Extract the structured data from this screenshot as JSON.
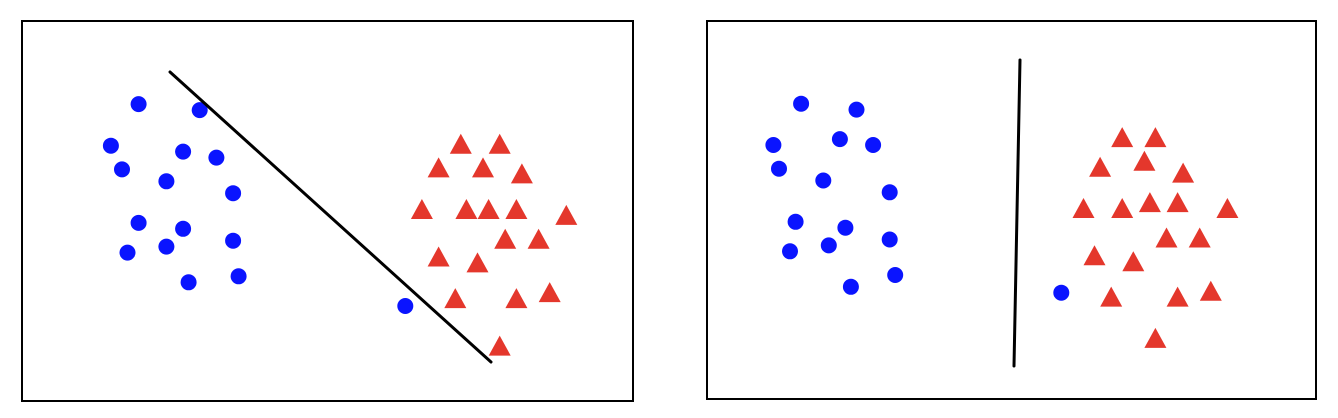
{
  "colors": {
    "background": "#ffffff",
    "frame": "#000000",
    "boundary": "#000000",
    "class_a": "#0a14ff",
    "class_b": "#e4372c"
  },
  "chart_data": [
    {
      "type": "scatter",
      "panel": "left",
      "boundary": {
        "orientation": "diagonal"
      },
      "series": [
        {
          "marker": "circle",
          "color": "#0a14ff",
          "points": [
            [
              1.55,
              2.5
            ],
            [
              2.1,
              2.45
            ],
            [
              1.3,
              2.15
            ],
            [
              1.95,
              2.1
            ],
            [
              2.25,
              2.05
            ],
            [
              1.4,
              1.95
            ],
            [
              1.8,
              1.85
            ],
            [
              2.4,
              1.75
            ],
            [
              1.55,
              1.5
            ],
            [
              1.95,
              1.45
            ],
            [
              2.4,
              1.35
            ],
            [
              1.45,
              1.25
            ],
            [
              1.8,
              1.3
            ],
            [
              2.45,
              1.05
            ],
            [
              2.0,
              1.0
            ],
            [
              3.95,
              0.8
            ]
          ]
        },
        {
          "marker": "triangle",
          "color": "#e4372c",
          "points": [
            [
              4.45,
              2.15
            ],
            [
              4.8,
              2.15
            ],
            [
              4.25,
              1.95
            ],
            [
              4.65,
              1.95
            ],
            [
              5.0,
              1.9
            ],
            [
              4.1,
              1.6
            ],
            [
              4.5,
              1.6
            ],
            [
              4.7,
              1.6
            ],
            [
              4.95,
              1.6
            ],
            [
              5.4,
              1.55
            ],
            [
              4.85,
              1.35
            ],
            [
              5.15,
              1.35
            ],
            [
              4.25,
              1.2
            ],
            [
              4.6,
              1.15
            ],
            [
              4.4,
              0.85
            ],
            [
              4.95,
              0.85
            ],
            [
              5.25,
              0.9
            ],
            [
              4.8,
              0.45
            ]
          ]
        }
      ]
    },
    {
      "type": "scatter",
      "panel": "right",
      "boundary": {
        "orientation": "vertical"
      },
      "series": [
        {
          "marker": "circle",
          "color": "#0a14ff",
          "points": [
            [
              1.35,
              2.5
            ],
            [
              1.85,
              2.45
            ],
            [
              1.1,
              2.15
            ],
            [
              1.7,
              2.2
            ],
            [
              2.0,
              2.15
            ],
            [
              1.15,
              1.95
            ],
            [
              1.55,
              1.85
            ],
            [
              2.15,
              1.75
            ],
            [
              1.3,
              1.5
            ],
            [
              1.75,
              1.45
            ],
            [
              2.15,
              1.35
            ],
            [
              1.25,
              1.25
            ],
            [
              1.6,
              1.3
            ],
            [
              2.2,
              1.05
            ],
            [
              1.8,
              0.95
            ],
            [
              3.7,
              0.9
            ]
          ]
        },
        {
          "marker": "triangle",
          "color": "#e4372c",
          "points": [
            [
              4.25,
              2.2
            ],
            [
              4.55,
              2.2
            ],
            [
              4.05,
              1.95
            ],
            [
              4.45,
              2.0
            ],
            [
              4.8,
              1.9
            ],
            [
              3.9,
              1.6
            ],
            [
              4.25,
              1.6
            ],
            [
              4.5,
              1.65
            ],
            [
              4.75,
              1.65
            ],
            [
              5.2,
              1.6
            ],
            [
              4.65,
              1.35
            ],
            [
              4.95,
              1.35
            ],
            [
              4.0,
              1.2
            ],
            [
              4.35,
              1.15
            ],
            [
              4.15,
              0.85
            ],
            [
              4.75,
              0.85
            ],
            [
              5.05,
              0.9
            ],
            [
              4.55,
              0.5
            ]
          ]
        }
      ]
    }
  ]
}
